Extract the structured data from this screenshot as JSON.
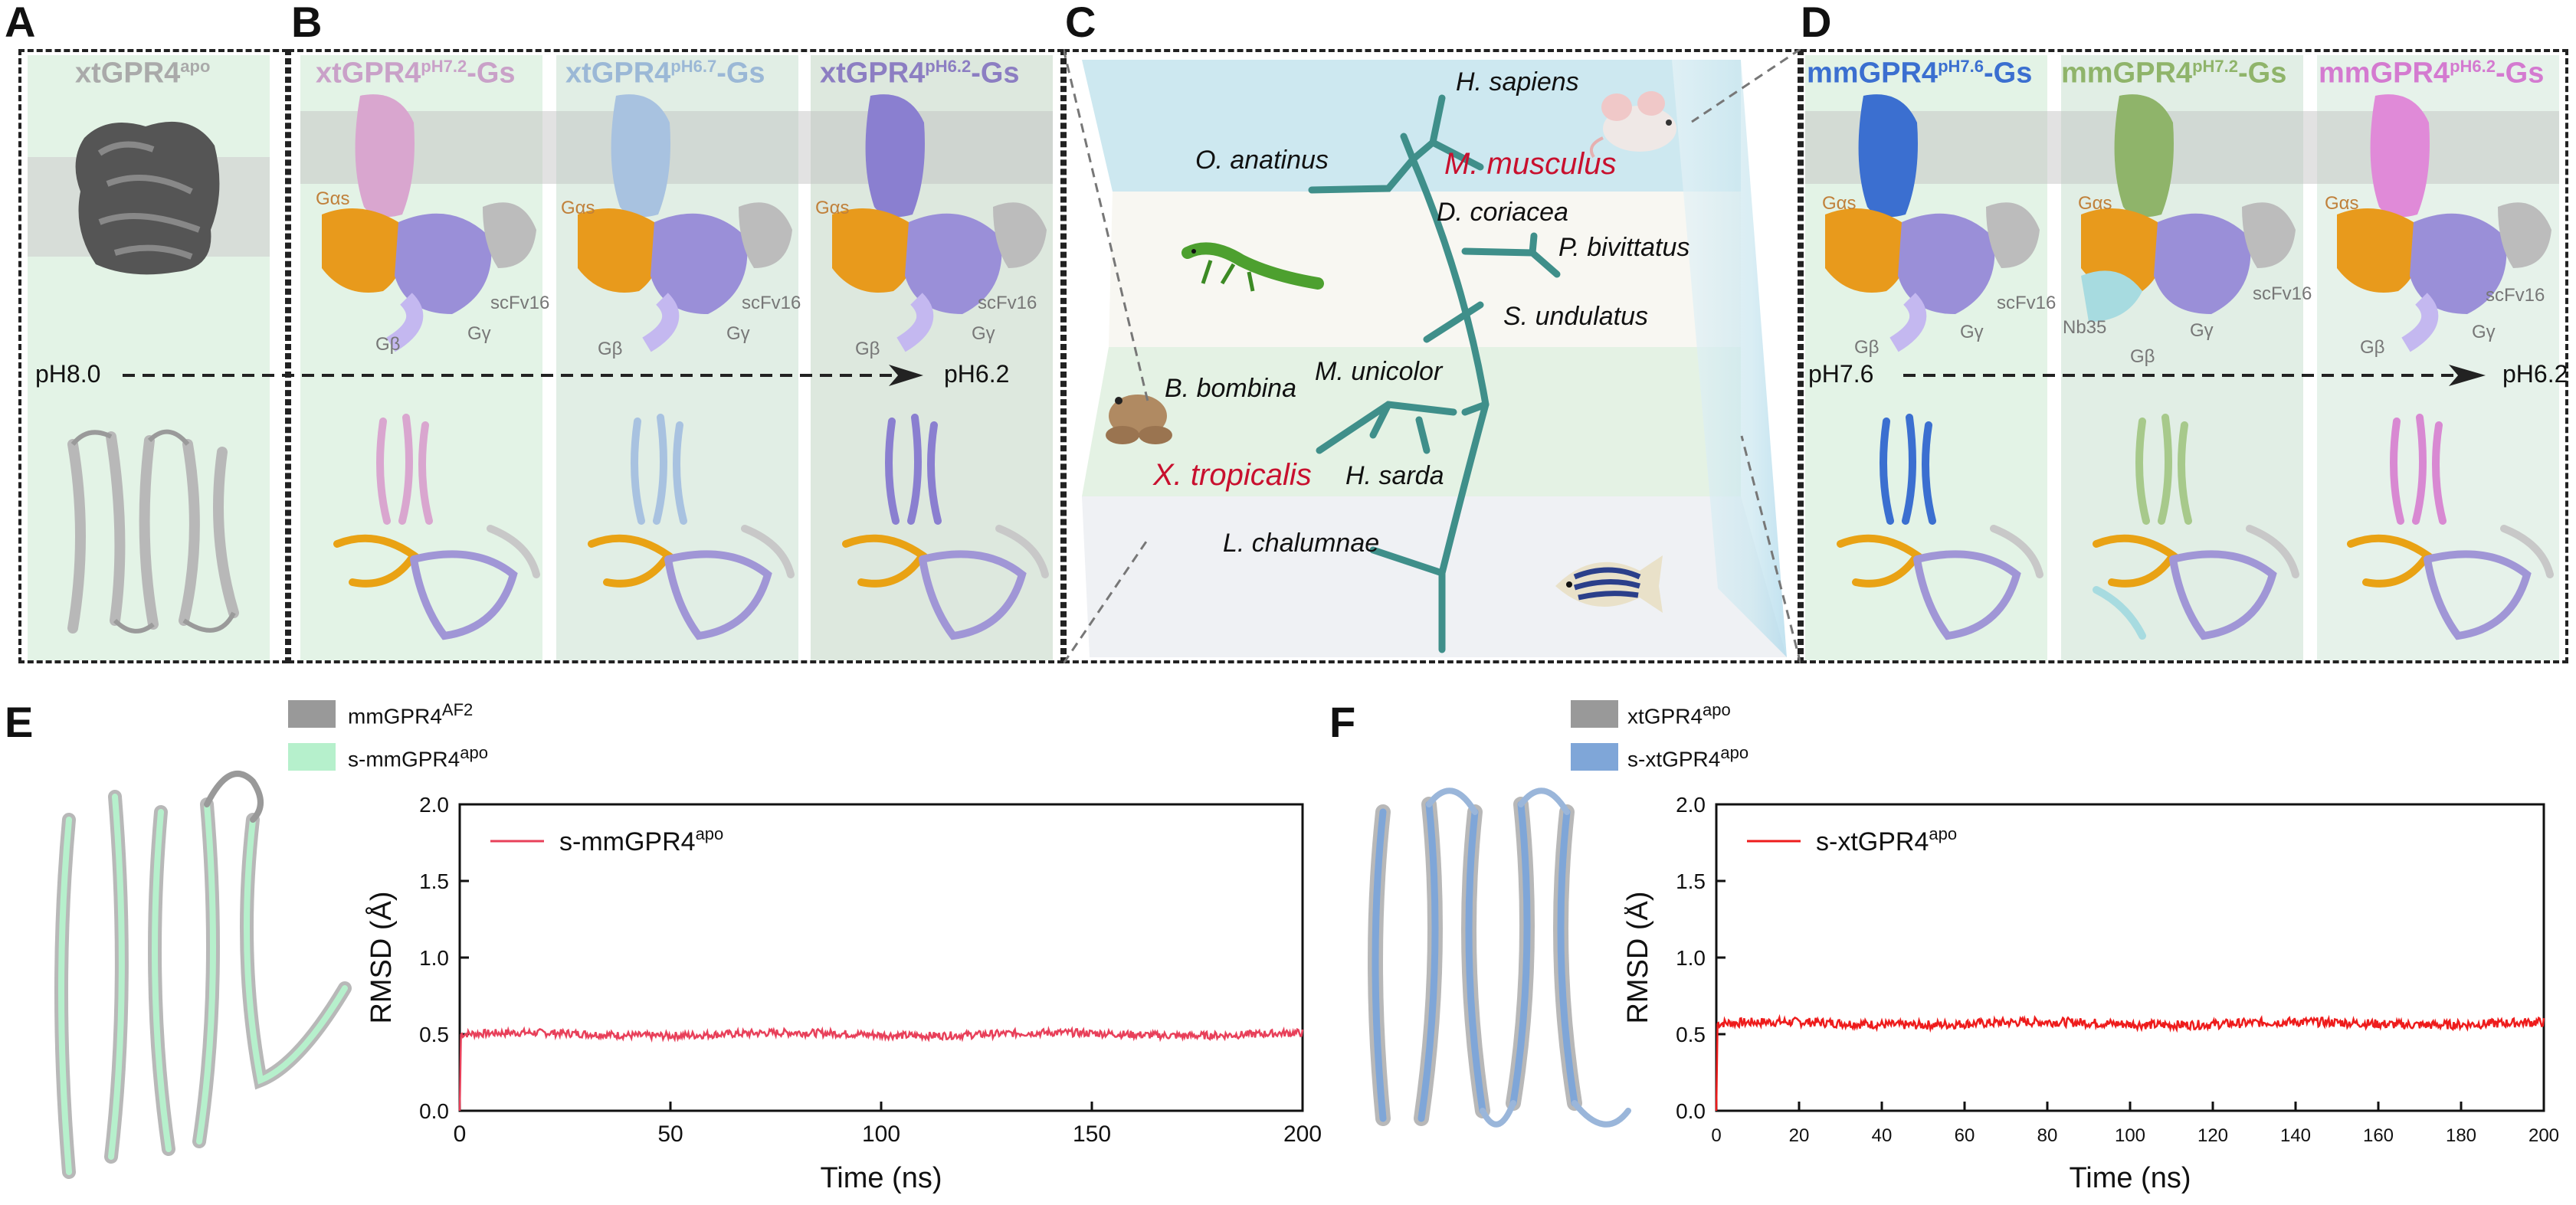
{
  "panel_labels": {
    "A": "A",
    "B": "B",
    "C": "C",
    "D": "D",
    "E": "E",
    "F": "F"
  },
  "panel_a": {
    "title": "xtGPR4",
    "title_sup": "apo",
    "ph": "pH8.0"
  },
  "panel_b": {
    "titles": [
      {
        "main": "xtGPR4",
        "sup": "pH7.2",
        "suffix": "-Gs",
        "color": "#c9a1c8"
      },
      {
        "main": "xtGPR4",
        "sup": "pH6.7",
        "suffix": "-Gs",
        "color": "#9bb8d6"
      },
      {
        "main": "xtGPR4",
        "sup": "pH6.2",
        "suffix": "-Gs",
        "color": "#8c7ec2"
      }
    ],
    "labels": {
      "gas": "Gαs",
      "scfv": "scFv16",
      "gb": "Gβ",
      "gg": "Gγ"
    },
    "ph_end": "pH6.2"
  },
  "panel_c": {
    "species": [
      {
        "name": "H. sapiens",
        "red": false
      },
      {
        "name": "O. anatinus",
        "red": false
      },
      {
        "name": "M. musculus",
        "red": true
      },
      {
        "name": "D. coriacea",
        "red": false
      },
      {
        "name": "P. bivittatus",
        "red": false
      },
      {
        "name": "S. undulatus",
        "red": false
      },
      {
        "name": "M. unicolor",
        "red": false
      },
      {
        "name": "B. bombina",
        "red": false
      },
      {
        "name": "X. tropicalis",
        "red": true
      },
      {
        "name": "H. sarda",
        "red": false
      },
      {
        "name": "L. chalumnae",
        "red": false
      }
    ]
  },
  "panel_d": {
    "titles": [
      {
        "main": "mmGPR4",
        "sup": "pH7.6",
        "suffix": "-Gs",
        "color": "#3b6fd0"
      },
      {
        "main": "mmGPR4",
        "sup": "pH7.2",
        "suffix": "-Gs",
        "color": "#8fb46a"
      },
      {
        "main": "mmGPR4",
        "sup": "pH6.2",
        "suffix": "-Gs",
        "color": "#d47ad0"
      }
    ],
    "labels": {
      "gas": "Gαs",
      "scfv": "scFv16",
      "gb": "Gβ",
      "gg": "Gγ",
      "nb35": "Nb35"
    },
    "ph_start": "pH7.6",
    "ph_end": "pH6.2"
  },
  "panel_e": {
    "legend": [
      {
        "main": "mmGPR4",
        "sup": "AF2",
        "color": "#999999"
      },
      {
        "main": "s-mmGPR4",
        "sup": "apo",
        "color": "#b6f0cc"
      }
    ]
  },
  "panel_f": {
    "legend": [
      {
        "main": "xtGPR4",
        "sup": "apo",
        "color": "#999999"
      },
      {
        "main": "s-xtGPR4",
        "sup": "apo",
        "color": "#7fa6d8"
      }
    ]
  },
  "chart_data": [
    {
      "type": "line",
      "xlabel": "Time (ns)",
      "ylabel": "RMSD (Å)",
      "xlim": [
        0,
        200
      ],
      "ylim": [
        0,
        2.0
      ],
      "xticks": [
        0,
        50,
        100,
        150,
        200
      ],
      "yticks": [
        0.0,
        0.5,
        1.0,
        1.5,
        2.0
      ],
      "series": [
        {
          "name": "s-mmGPR4",
          "name_sup": "apo",
          "color": "#e8405a",
          "mean": 0.5,
          "noise": 0.025,
          "x_end": 200
        }
      ]
    },
    {
      "type": "line",
      "xlabel": "Time (ns)",
      "ylabel": "RMSD (Å)",
      "xlim": [
        0,
        200
      ],
      "ylim": [
        0,
        2.0
      ],
      "xticks": [
        0,
        20,
        40,
        60,
        80,
        100,
        120,
        140,
        160,
        180,
        200
      ],
      "yticks": [
        0.0,
        0.5,
        1.0,
        1.5,
        2.0
      ],
      "series": [
        {
          "name": "s-xtGPR4",
          "name_sup": "apo",
          "color": "#ee1c1c",
          "mean": 0.57,
          "noise": 0.03,
          "x_end": 200
        }
      ]
    }
  ]
}
